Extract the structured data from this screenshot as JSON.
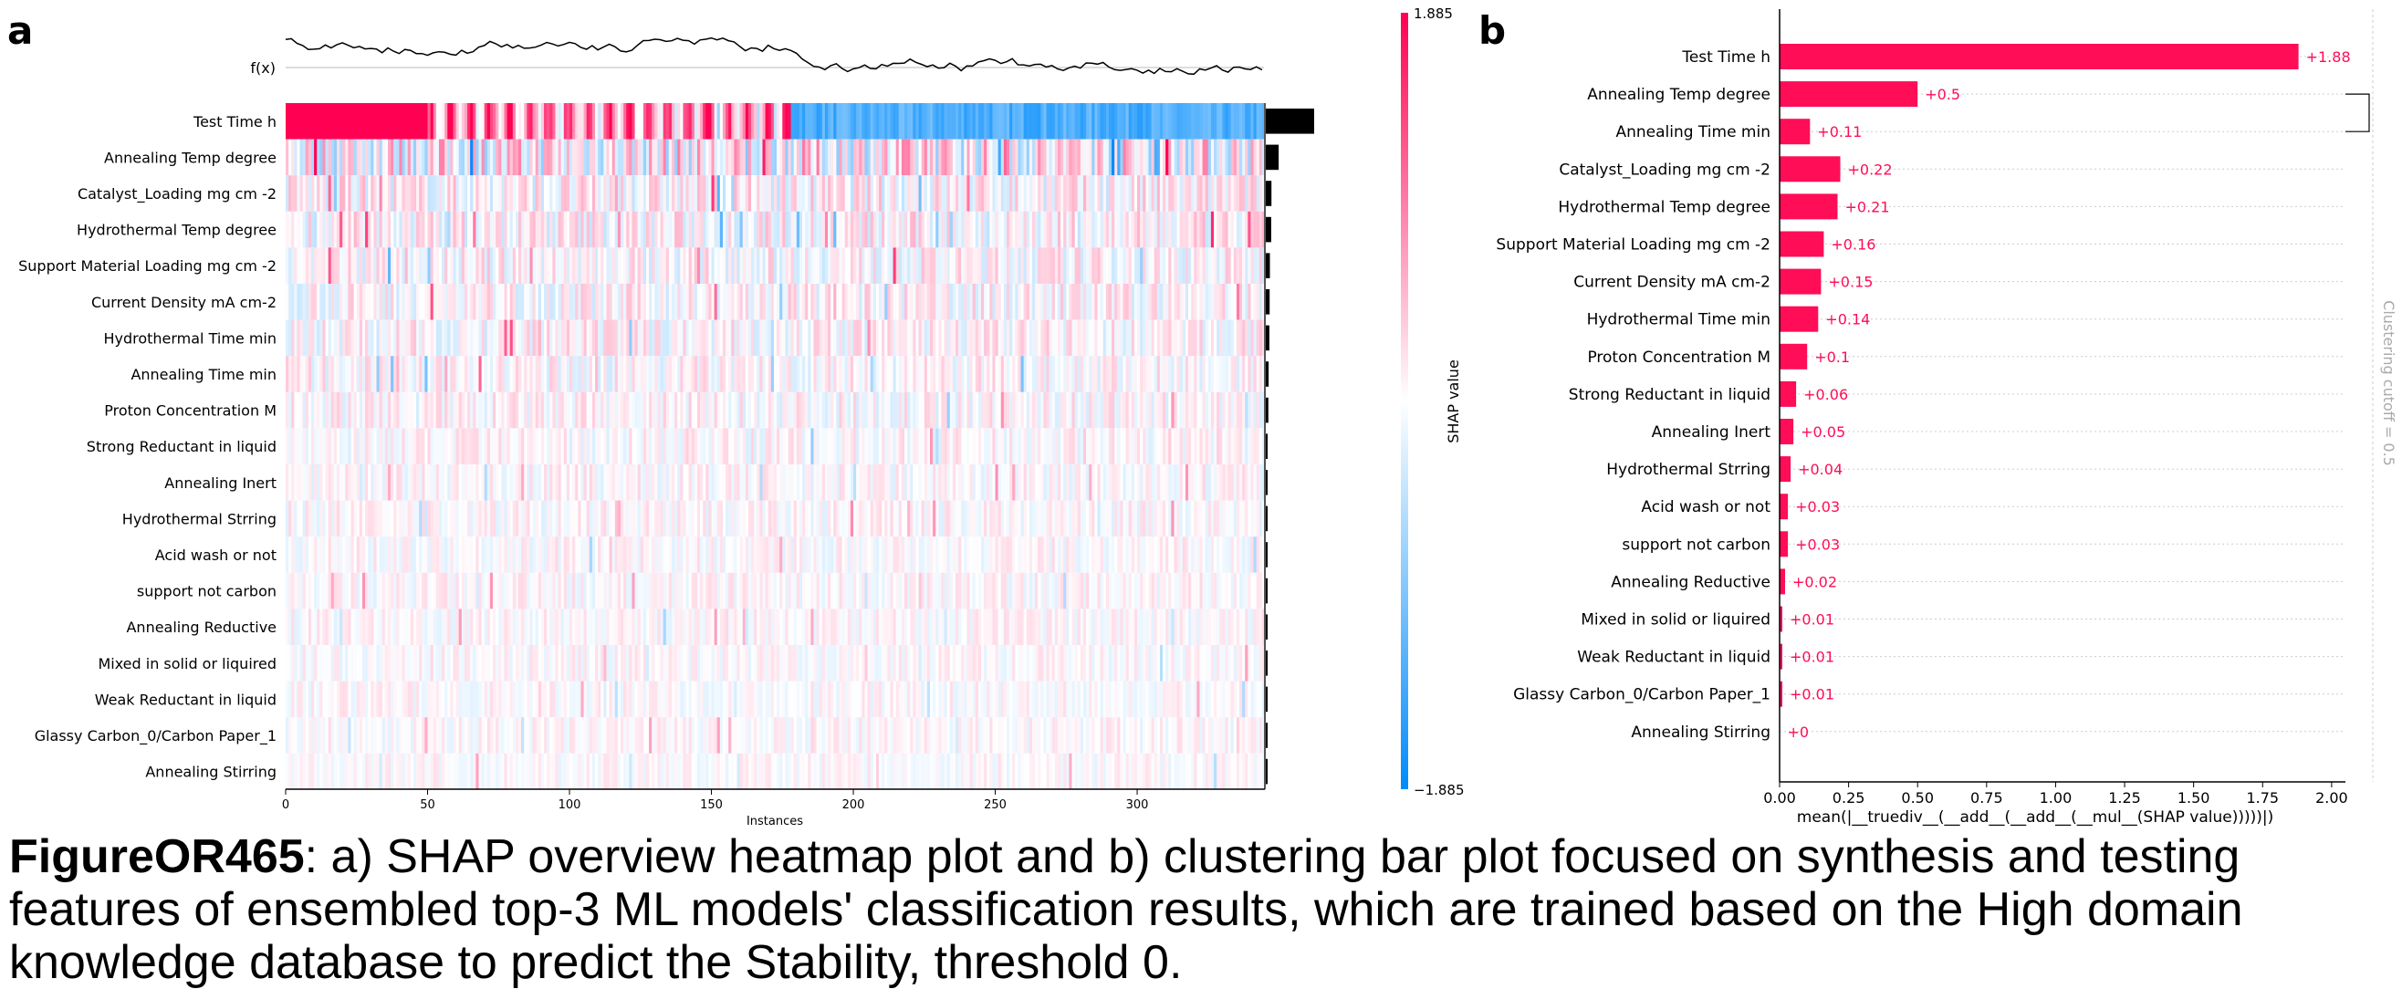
{
  "panel_a": {
    "letter": "a",
    "fx_label": "f(x)",
    "xlabel": "Instances",
    "colorbar": {
      "label": "SHAP value",
      "max_label": "1.885",
      "min_label": "−1.885",
      "max": 1.885,
      "min": -1.885,
      "high_color": "#ff0052",
      "low_color": "#008bfb"
    }
  },
  "panel_b": {
    "letter": "b",
    "xlabel": "mean(|__truediv__(__add__(__add__(__mul__(SHAP value)))))|)",
    "cutoff_label": "Clustering cutoff = 0.5",
    "bar_color": "#ff0d57"
  },
  "caption": {
    "label": "FigureOR465",
    "text": ": a) SHAP overview heatmap plot and b) clustering bar plot focused on synthesis and testing features of ensembled top-3 ML models' classification results, which are trained based on the High domain knowledge database to predict the Stability, threshold 0."
  },
  "chart_data": [
    {
      "type": "heatmap",
      "n_instances": 345,
      "xlim": [
        0,
        345
      ],
      "xticks": [
        0,
        50,
        100,
        150,
        200,
        250,
        300
      ],
      "features": [
        "Test Time h",
        "Annealing Temp degree",
        "Catalyst_Loading mg cm -2",
        "Hydrothermal Temp degree",
        "Support Material Loading mg cm -2",
        "Current Density mA cm-2",
        "Hydrothermal Time min",
        "Annealing Time min",
        "Proton Concentration M",
        "Strong Reductant in liquid",
        "Annealing Inert",
        "Hydrothermal Strring",
        "Acid wash or not",
        "support not carbon",
        "Annealing Reductive",
        "Mixed in solid or liquired",
        "Weak Reductant in liquid",
        "Glassy Carbon_0/Carbon Paper_1",
        "Annealing Stirring"
      ],
      "feature_importance": [
        1.88,
        0.5,
        0.22,
        0.21,
        0.16,
        0.15,
        0.14,
        0.11,
        0.1,
        0.06,
        0.05,
        0.04,
        0.03,
        0.03,
        0.02,
        0.01,
        0.01,
        0.01,
        0
      ],
      "shap_range": [
        -1.885,
        1.885
      ]
    },
    {
      "type": "bar",
      "categories": [
        "Test Time h",
        "Annealing Temp degree",
        "Annealing Time min",
        "Catalyst_Loading mg cm -2",
        "Hydrothermal Temp degree",
        "Support Material Loading mg cm -2",
        "Current Density mA cm-2",
        "Hydrothermal Time min",
        "Proton Concentration M",
        "Strong Reductant in liquid",
        "Annealing Inert",
        "Hydrothermal Strring",
        "Acid wash or not",
        "support not carbon",
        "Annealing Reductive",
        "Mixed in solid or liquired",
        "Weak Reductant in liquid",
        "Glassy Carbon_0/Carbon Paper_1",
        "Annealing Stirring"
      ],
      "values": [
        1.88,
        0.5,
        0.11,
        0.22,
        0.21,
        0.16,
        0.15,
        0.14,
        0.1,
        0.06,
        0.05,
        0.04,
        0.03,
        0.03,
        0.02,
        0.01,
        0.01,
        0.01,
        0
      ],
      "value_labels": [
        "+1.88",
        "+0.5",
        "+0.11",
        "+0.22",
        "+0.21",
        "+0.16",
        "+0.15",
        "+0.14",
        "+0.1",
        "+0.06",
        "+0.05",
        "+0.04",
        "+0.03",
        "+0.03",
        "+0.02",
        "+0.01",
        "+0.01",
        "+0.01",
        "+0"
      ],
      "xticks": [
        "0.00",
        "0.25",
        "0.50",
        "0.75",
        "1.00",
        "1.25",
        "1.50",
        "1.75",
        "2.00"
      ],
      "xlim": [
        0,
        2.05
      ],
      "clustering_cutoff": 0.5,
      "cluster_bracket": [
        "Annealing Temp degree",
        "Annealing Time min"
      ]
    }
  ]
}
